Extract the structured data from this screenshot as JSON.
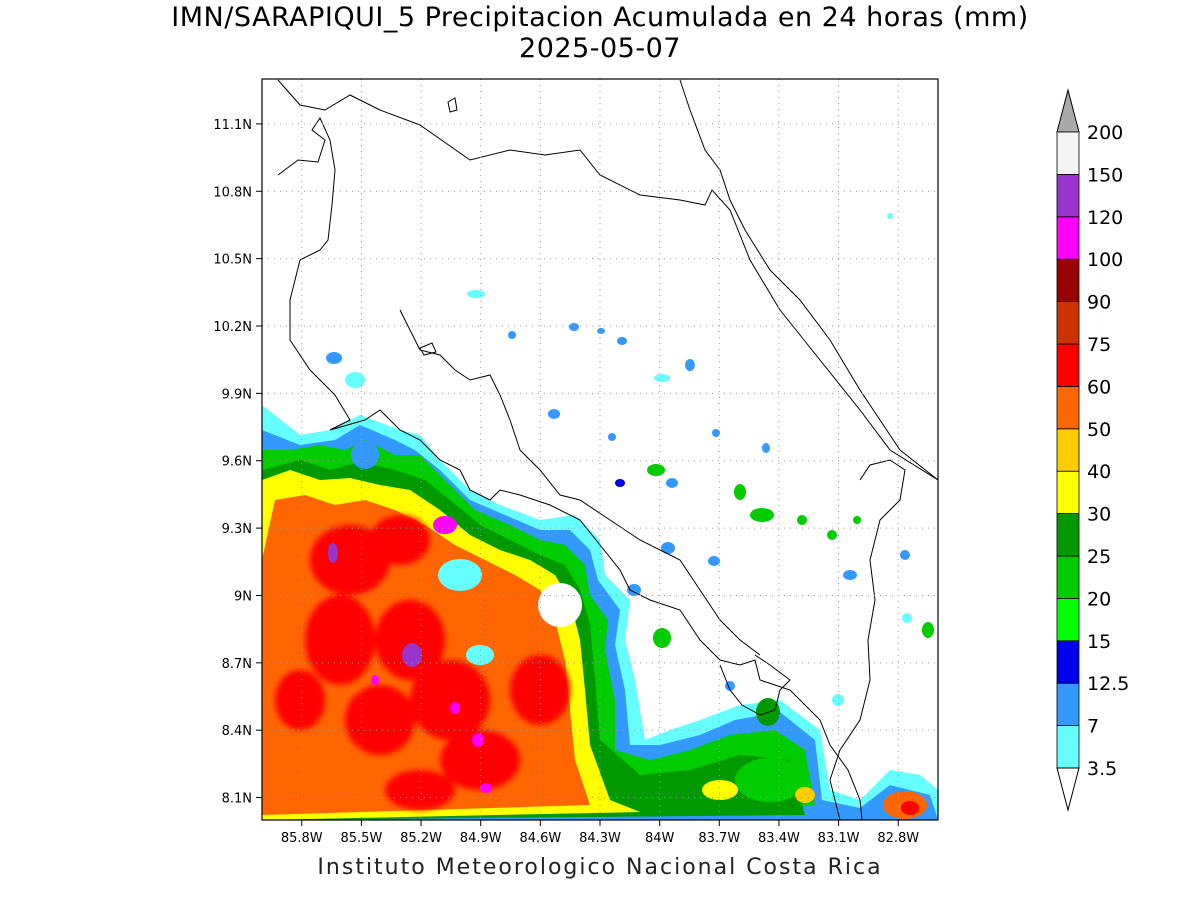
{
  "title": {
    "line1": "IMN/SARAPIQUI_5 Precipitacion Acumulada en 24 horas (mm)",
    "line2": "2025-05-07"
  },
  "footer": "Instituto Meteorologico Nacional Costa Rica",
  "map": {
    "lon_range": [
      -86.0,
      -82.6
    ],
    "lat_range": [
      8.0,
      11.3
    ],
    "lat_ticks": [
      "11.1N",
      "10.8N",
      "10.5N",
      "10.2N",
      "9.9N",
      "9.6N",
      "9.3N",
      "9N",
      "8.7N",
      "8.4N",
      "8.1N"
    ],
    "lat_tick_values": [
      11.1,
      10.8,
      10.5,
      10.2,
      9.9,
      9.6,
      9.3,
      9.0,
      8.7,
      8.4,
      8.1
    ],
    "lon_ticks": [
      "85.8W",
      "85.5W",
      "85.2W",
      "84.9W",
      "84.6W",
      "84.3W",
      "84W",
      "83.7W",
      "83.4W",
      "83.1W",
      "82.8W"
    ],
    "lon_tick_values": [
      -85.8,
      -85.5,
      -85.2,
      -84.9,
      -84.6,
      -84.3,
      -84.0,
      -83.7,
      -83.4,
      -83.1,
      -82.8
    ],
    "grid": "dotted"
  },
  "colorbar": {
    "labels": [
      "3.5",
      "7",
      "12.5",
      "15",
      "20",
      "25",
      "30",
      "40",
      "50",
      "60",
      "75",
      "90",
      "100",
      "120",
      "150",
      "200"
    ],
    "colors": [
      "#66ffff",
      "#3399ff",
      "#0000ee",
      "#00ff00",
      "#00cc00",
      "#009900",
      "#ffff00",
      "#ffcc00",
      "#ff6600",
      "#ff0000",
      "#cc3300",
      "#990000",
      "#ff00ff",
      "#9933cc",
      "#f4f4f4",
      "#aaaaaa"
    ],
    "low_end_color": "#ffffff",
    "high_end_color": "#aaaaaa"
  }
}
